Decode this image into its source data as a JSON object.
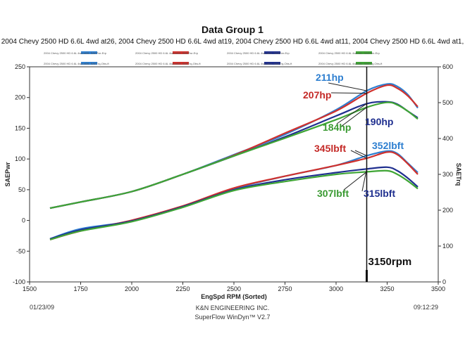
{
  "chart_data": {
    "type": "line",
    "title": "Data Group 1",
    "subtitle": "2004 Chevy 2500 HD 6.6L 4wd at26, 2004 Chevy 2500 HD 6.6L 4wd at19, 2004 Chevy 2500 HD 6.6L 4wd at11, 2004 Chevy 2500 HD 6.6L 4wd at1,",
    "xlabel": "EngSpd  RPM  (Sorted)",
    "ylabel_left": "SAEPwr",
    "ylabel_right": "SAETrq",
    "xlim": [
      1500,
      3500
    ],
    "ylim_left": [
      -100,
      250
    ],
    "ylim_right": [
      0,
      600
    ],
    "xticks": [
      "1500",
      "1750",
      "2000",
      "2250",
      "2500",
      "2750",
      "3000",
      "3250",
      "3500"
    ],
    "yticks_left": [
      "-100",
      "-50",
      "0",
      "50",
      "100",
      "150",
      "200",
      "250"
    ],
    "yticks_right": [
      "0",
      "100",
      "200",
      "300",
      "400",
      "500",
      "600"
    ],
    "grid": false,
    "legend_position": "top",
    "legend": [
      {
        "text": "2004 Chevy 2500 HD 6.6L 4wd at26: SAEPwr-Erp",
        "color": "#2e7fd0"
      },
      {
        "text": "2004 Chevy 2500 HD 6.6L 4wd at19: SAEPwr-Erp",
        "color": "#d0312d"
      },
      {
        "text": "2004 Chevy 2500 HD 6.6L 4wd at11: SAEPwr-Erp",
        "color": "#1f2f8f"
      },
      {
        "text": "2004 Chevy 2500 HD 6.6L 4wd at1: SAEPwr-Erp",
        "color": "#3fa535"
      },
      {
        "text": "2004 Chevy 2500 HD 6.6L 4wd at26: SAETrq-Obs-ft",
        "color": "#2e7fd0"
      },
      {
        "text": "2004 Chevy 2500 HD 6.6L 4wd at19: SAETrq-Obs-ft",
        "color": "#d0312d"
      },
      {
        "text": "2004 Chevy 2500 HD 6.6L 4wd at11: SAETrq-Obs-ft",
        "color": "#1f2f8f"
      },
      {
        "text": "2004 Chevy 2500 HD 6.6L 4wd at1: SAETrq-Obs-ft",
        "color": "#3fa535"
      }
    ],
    "x": [
      1600,
      1750,
      2000,
      2250,
      2500,
      2750,
      3000,
      3150,
      3250,
      3300,
      3350,
      3400
    ],
    "series": [
      {
        "axis": "left",
        "color": "#2e7fd0",
        "values": [
          20,
          30,
          47,
          75,
          107,
          140,
          180,
          211,
          222,
          218,
          205,
          183
        ]
      },
      {
        "axis": "left",
        "color": "#d0312d",
        "values": [
          20,
          30,
          47,
          75,
          106,
          142,
          178,
          207,
          220,
          215,
          203,
          185
        ]
      },
      {
        "axis": "left",
        "color": "#1f2f8f",
        "values": [
          20,
          30,
          47,
          75,
          105,
          136,
          170,
          190,
          193,
          189,
          178,
          167
        ]
      },
      {
        "axis": "left",
        "color": "#3fa535",
        "values": [
          20,
          30,
          47,
          75,
          105,
          134,
          164,
          184,
          192,
          188,
          178,
          165
        ]
      },
      {
        "axis": "right",
        "color": "#2e7fd0",
        "values": [
          120,
          148,
          170,
          210,
          260,
          295,
          325,
          352,
          365,
          358,
          332,
          305
        ]
      },
      {
        "axis": "right",
        "color": "#d0312d",
        "values": [
          118,
          142,
          172,
          212,
          262,
          295,
          325,
          345,
          362,
          355,
          330,
          300
        ]
      },
      {
        "axis": "right",
        "color": "#1f2f8f",
        "values": [
          120,
          145,
          170,
          210,
          257,
          285,
          305,
          315,
          320,
          310,
          290,
          265
        ]
      },
      {
        "axis": "right",
        "color": "#3fa535",
        "values": [
          118,
          142,
          168,
          208,
          255,
          280,
          300,
          307,
          310,
          300,
          282,
          260
        ]
      }
    ],
    "annotations": [
      {
        "text": "211hp",
        "color": "#2e7fd0"
      },
      {
        "text": "207hp",
        "color": "#c42a27"
      },
      {
        "text": "190hp",
        "color": "#1f2f8f"
      },
      {
        "text": "184hp",
        "color": "#3a9a32"
      },
      {
        "text": "352lbft",
        "color": "#2e7fd0"
      },
      {
        "text": "345lbft",
        "color": "#c42a27"
      },
      {
        "text": "307lbft",
        "color": "#3a9a32"
      },
      {
        "text": "315lbft",
        "color": "#1f2f8f"
      }
    ],
    "marker_x": 3150,
    "marker_label": "3150rpm"
  },
  "footer": {
    "date": "01/23/09",
    "company": "K&N ENGINEERING INC.",
    "software": "SuperFlow WinDyn™ V2.7",
    "time": "09:12:29"
  }
}
